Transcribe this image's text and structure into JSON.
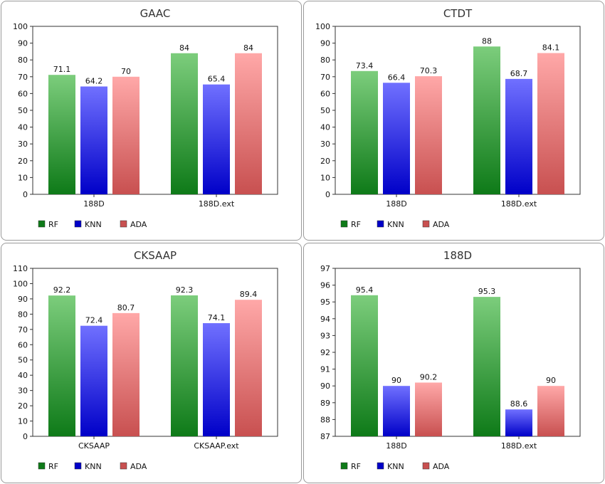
{
  "colors": {
    "RF": [
      "#7ccd7c",
      "#0e7a18"
    ],
    "KNN": [
      "#7070ff",
      "#0000c8"
    ],
    "ADA": [
      "#ffa8a8",
      "#c85050"
    ]
  },
  "chart_data": [
    {
      "type": "bar",
      "title": "GAAC",
      "categories": [
        "188D",
        "188D.ext"
      ],
      "series": [
        {
          "name": "RF",
          "values": [
            71.1,
            84
          ]
        },
        {
          "name": "KNN",
          "values": [
            64.2,
            65.4
          ]
        },
        {
          "name": "ADA",
          "values": [
            70,
            84
          ]
        }
      ],
      "ylim": [
        0,
        100
      ],
      "yticks": [
        "0",
        "10",
        "20",
        "30",
        "40",
        "50",
        "60",
        "70",
        "80",
        "90",
        "100"
      ],
      "data_labels": [
        [
          "71.1",
          "84"
        ],
        [
          "64.2",
          "65.4"
        ],
        [
          "70",
          "84"
        ]
      ],
      "legend": "bottom-left"
    },
    {
      "type": "bar",
      "title": "CTDT",
      "categories": [
        "188D",
        "188D.ext"
      ],
      "series": [
        {
          "name": "RF",
          "values": [
            73.4,
            88
          ]
        },
        {
          "name": "KNN",
          "values": [
            66.4,
            68.7
          ]
        },
        {
          "name": "ADA",
          "values": [
            70.3,
            84.1
          ]
        }
      ],
      "ylim": [
        0,
        100
      ],
      "yticks": [
        "0",
        "10",
        "20",
        "30",
        "40",
        "50",
        "60",
        "70",
        "80",
        "90",
        "100"
      ],
      "data_labels": [
        [
          "73.4",
          "88"
        ],
        [
          "66.4",
          "68.7"
        ],
        [
          "70.3",
          "84.1"
        ]
      ],
      "legend": "bottom-left"
    },
    {
      "type": "bar",
      "title": "CKSAAP",
      "categories": [
        "CKSAAP",
        "CKSAAP.ext"
      ],
      "series": [
        {
          "name": "RF",
          "values": [
            92.2,
            92.3
          ]
        },
        {
          "name": "KNN",
          "values": [
            72.4,
            74.1
          ]
        },
        {
          "name": "ADA",
          "values": [
            80.7,
            89.4
          ]
        }
      ],
      "ylim": [
        0,
        110
      ],
      "yticks": [
        "0",
        "10",
        "20",
        "30",
        "40",
        "50",
        "60",
        "70",
        "80",
        "90",
        "100",
        "110"
      ],
      "data_labels": [
        [
          "92.2",
          "92.3"
        ],
        [
          "72.4",
          "74.1"
        ],
        [
          "80.7",
          "89.4"
        ]
      ],
      "legend": "bottom-left"
    },
    {
      "type": "bar",
      "title": "188D",
      "categories": [
        "188D",
        "188D.ext"
      ],
      "series": [
        {
          "name": "RF",
          "values": [
            95.4,
            95.3
          ]
        },
        {
          "name": "KNN",
          "values": [
            90,
            88.6
          ]
        },
        {
          "name": "ADA",
          "values": [
            90.2,
            90
          ]
        }
      ],
      "ylim": [
        87,
        97
      ],
      "yticks": [
        "87",
        "88",
        "89",
        "90",
        "91",
        "92",
        "93",
        "94",
        "95",
        "96",
        "97"
      ],
      "data_labels": [
        [
          "95.4",
          "95.3"
        ],
        [
          "90",
          "88.6"
        ],
        [
          "90.2",
          "90"
        ]
      ],
      "legend": "bottom-left"
    }
  ]
}
